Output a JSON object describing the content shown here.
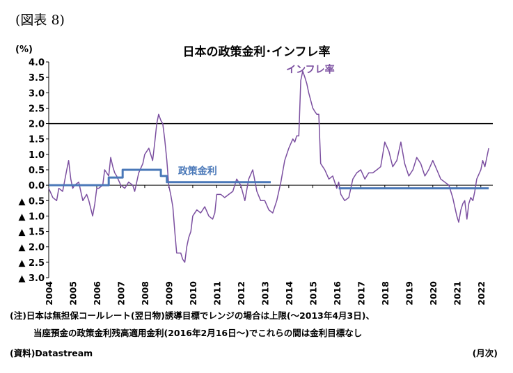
{
  "figure_label": "(図表 8)",
  "unit_label": "(%)",
  "notes": {
    "line1": "(注)日本は無担保コールレート(翌日物)誘導目標でレンジの場合は上限(～2013年4月3日)、",
    "line2": "当座預金の政策金利残高適用金利(2016年2月16日～)でこれらの間は金利目標なし",
    "source": "(資料)Datastream",
    "x_unit": "(月次)"
  },
  "colors": {
    "inflation": "#7b4fa0",
    "policy": "#4a78b8",
    "zero_line": "#000000"
  },
  "chart_data": {
    "type": "line",
    "title": "日本の政策金利･インフレ率",
    "ylim": [
      -3.0,
      4.0
    ],
    "xlim": [
      2004.0,
      2022.5
    ],
    "yticks": [
      {
        "v": 4.0,
        "label": "4.0"
      },
      {
        "v": 3.5,
        "label": "3.5"
      },
      {
        "v": 3.0,
        "label": "3.0"
      },
      {
        "v": 2.5,
        "label": "2.5"
      },
      {
        "v": 2.0,
        "label": "2.0"
      },
      {
        "v": 1.5,
        "label": "1.5"
      },
      {
        "v": 1.0,
        "label": "1.0"
      },
      {
        "v": 0.5,
        "label": "0.5"
      },
      {
        "v": 0.0,
        "label": "0.0"
      },
      {
        "v": -0.5,
        "label": "▲ 0.5"
      },
      {
        "v": -1.0,
        "label": "▲ 1.0"
      },
      {
        "v": -1.5,
        "label": "▲ 1.5"
      },
      {
        "v": -2.0,
        "label": "▲ 2.0"
      },
      {
        "v": -2.5,
        "label": "▲ 2.5"
      },
      {
        "v": -3.0,
        "label": "▲ 3.0"
      }
    ],
    "xticks": [
      "2004",
      "2005",
      "2006",
      "2007",
      "2008",
      "2009",
      "2010",
      "2011",
      "2012",
      "2013",
      "2014",
      "2015",
      "2016",
      "2017",
      "2018",
      "2019",
      "2020",
      "2021",
      "2022"
    ],
    "reference_lines": [
      2.0,
      0.0
    ],
    "series": [
      {
        "name": "インフレ率",
        "x": [
          2004.0,
          2004.17,
          2004.33,
          2004.42,
          2004.58,
          2004.75,
          2004.83,
          2004.92,
          2005.0,
          2005.08,
          2005.25,
          2005.42,
          2005.58,
          2005.67,
          2005.83,
          2005.92,
          2006.0,
          2006.08,
          2006.25,
          2006.33,
          2006.5,
          2006.58,
          2006.67,
          2006.75,
          2006.83,
          2007.0,
          2007.17,
          2007.33,
          2007.5,
          2007.58,
          2007.75,
          2007.92,
          2008.0,
          2008.17,
          2008.33,
          2008.42,
          2008.5,
          2008.58,
          2008.67,
          2008.75,
          2008.83,
          2008.92,
          2009.0,
          2009.08,
          2009.17,
          2009.25,
          2009.33,
          2009.42,
          2009.5,
          2009.58,
          2009.67,
          2009.75,
          2009.83,
          2009.92,
          2010.0,
          2010.17,
          2010.33,
          2010.5,
          2010.67,
          2010.83,
          2010.92,
          2011.0,
          2011.17,
          2011.33,
          2011.5,
          2011.67,
          2011.83,
          2012.0,
          2012.17,
          2012.33,
          2012.5,
          2012.67,
          2012.83,
          2013.0,
          2013.17,
          2013.33,
          2013.5,
          2013.67,
          2013.83,
          2014.0,
          2014.17,
          2014.25,
          2014.33,
          2014.42,
          2014.5,
          2014.58,
          2014.67,
          2014.75,
          2014.83,
          2015.0,
          2015.08,
          2015.17,
          2015.25,
          2015.33,
          2015.5,
          2015.67,
          2015.83,
          2016.0,
          2016.08,
          2016.17,
          2016.33,
          2016.5,
          2016.67,
          2016.83,
          2017.0,
          2017.17,
          2017.33,
          2017.5,
          2017.67,
          2017.83,
          2018.0,
          2018.17,
          2018.33,
          2018.5,
          2018.67,
          2018.83,
          2019.0,
          2019.17,
          2019.33,
          2019.5,
          2019.67,
          2019.83,
          2020.0,
          2020.17,
          2020.33,
          2020.5,
          2020.67,
          2020.83,
          2021.0,
          2021.08,
          2021.17,
          2021.25,
          2021.33,
          2021.42,
          2021.5,
          2021.58,
          2021.67,
          2021.75,
          2021.83,
          2022.0,
          2022.08,
          2022.17,
          2022.33
        ],
        "values": [
          -0.1,
          -0.4,
          -0.5,
          -0.1,
          -0.2,
          0.5,
          0.8,
          0.2,
          -0.1,
          0.0,
          0.1,
          -0.5,
          -0.3,
          -0.5,
          -1.0,
          -0.6,
          -0.1,
          -0.1,
          0.0,
          0.5,
          0.3,
          0.9,
          0.6,
          0.4,
          0.3,
          0.0,
          -0.1,
          0.1,
          0.0,
          -0.2,
          0.4,
          0.7,
          1.0,
          1.2,
          0.8,
          1.4,
          2.0,
          2.3,
          2.1,
          2.0,
          1.5,
          0.8,
          0.0,
          -0.3,
          -0.7,
          -1.5,
          -2.2,
          -2.2,
          -2.2,
          -2.4,
          -2.5,
          -2.0,
          -1.7,
          -1.5,
          -1.0,
          -0.8,
          -0.9,
          -0.7,
          -1.0,
          -1.1,
          -0.9,
          -0.3,
          -0.3,
          -0.4,
          -0.3,
          -0.2,
          0.2,
          0.0,
          -0.5,
          0.2,
          0.5,
          -0.2,
          -0.5,
          -0.5,
          -0.8,
          -0.9,
          -0.5,
          0.1,
          0.8,
          1.2,
          1.5,
          1.4,
          1.6,
          1.6,
          3.4,
          3.7,
          3.5,
          3.3,
          3.0,
          2.5,
          2.4,
          2.3,
          2.3,
          0.7,
          0.5,
          0.2,
          0.3,
          -0.1,
          0.1,
          -0.3,
          -0.5,
          -0.4,
          0.2,
          0.4,
          0.5,
          0.2,
          0.4,
          0.4,
          0.5,
          0.6,
          1.4,
          1.1,
          0.6,
          0.8,
          1.4,
          0.7,
          0.3,
          0.5,
          0.9,
          0.7,
          0.3,
          0.5,
          0.8,
          0.5,
          0.2,
          0.1,
          0.0,
          -0.4,
          -1.0,
          -1.2,
          -0.8,
          -0.6,
          -0.5,
          -1.1,
          -0.6,
          -0.4,
          -0.5,
          -0.2,
          0.2,
          0.5,
          0.8,
          0.6,
          1.2
        ]
      },
      {
        "name": "政策金利",
        "x": [
          2004.0,
          2006.5,
          2006.5,
          2007.08,
          2007.08,
          2008.67,
          2008.67,
          2008.92,
          2008.92,
          2013.25,
          null,
          2016.08,
          2016.08,
          2022.33
        ],
        "values": [
          0.0,
          0.0,
          0.25,
          0.25,
          0.5,
          0.5,
          0.3,
          0.3,
          0.1,
          0.1,
          null,
          -0.1,
          -0.1,
          -0.1
        ]
      }
    ]
  }
}
